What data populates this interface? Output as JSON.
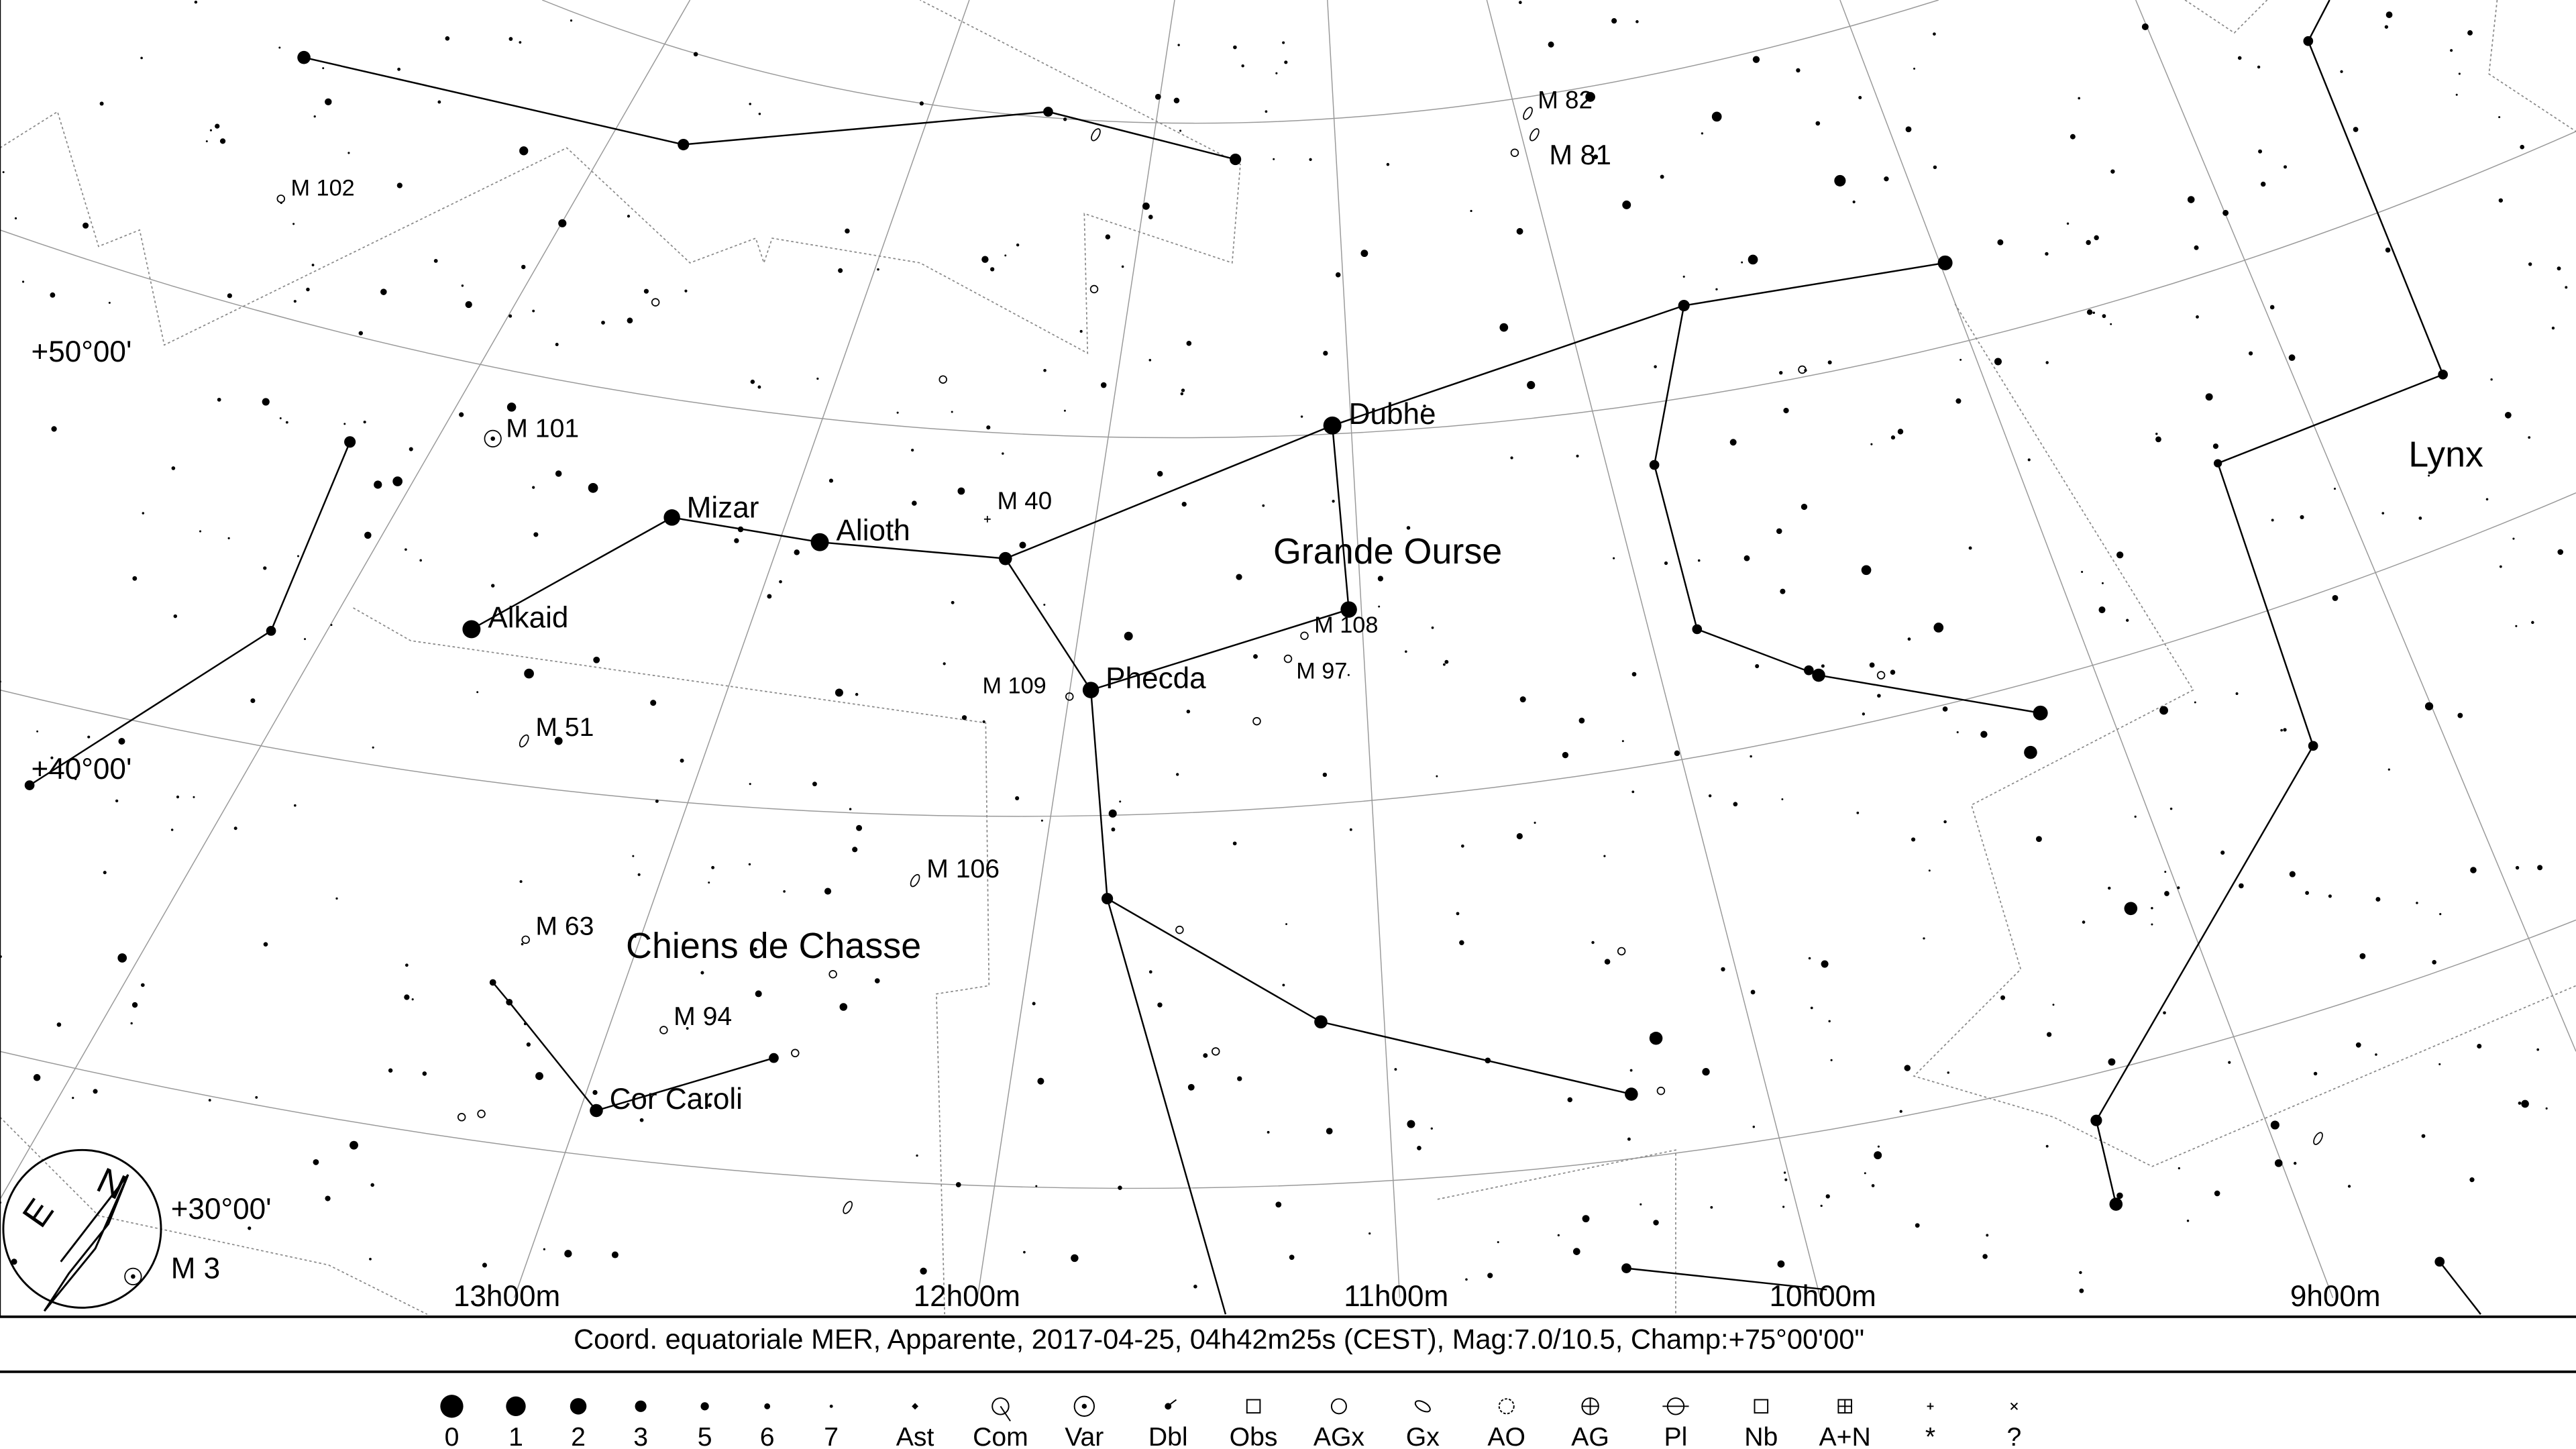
{
  "chart": {
    "stars": [
      "Dubhe",
      "Mizar",
      "Alioth",
      "Alkaid",
      "Phecda",
      "Cor Caroli"
    ],
    "messier": [
      "M 82",
      "M 81",
      "M 102",
      "M 101",
      "M 40",
      "M 108",
      "M 97",
      "M 109",
      "M 51",
      "M 106",
      "M 63",
      "M 94",
      "M 3"
    ],
    "constellations": [
      "Grande Ourse",
      "Chiens de Chasse",
      "Lynx"
    ],
    "dec_labels": [
      "+50°00'",
      "+40°00'",
      "+30°00'"
    ],
    "ra_labels": [
      "13h00m",
      "12h00m",
      "11h00m",
      "10h00m",
      "9h00m"
    ],
    "compass": {
      "north": "N",
      "east": "E"
    }
  },
  "status": "Coord. equatoriale MER, Apparente, 2017-04-25, 04h42m25s (CEST), Mag:7.0/10.5, Champ:+75°00'00\"",
  "legend": [
    "0",
    "1",
    "2",
    "3",
    "5",
    "6",
    "7",
    "Ast",
    "Com",
    "Var",
    "Dbl",
    "Obs",
    "AGx",
    "Gx",
    "AO",
    "AG",
    "Pl",
    "Nb",
    "A+N",
    "*",
    "?"
  ]
}
